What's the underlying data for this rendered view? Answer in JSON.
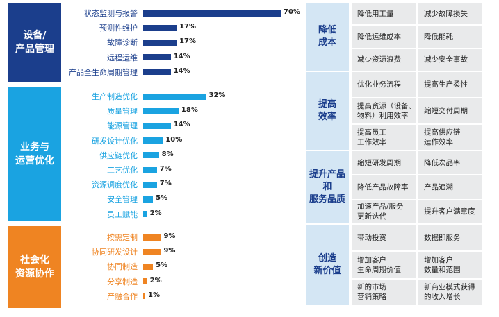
{
  "colors": {
    "equipment": "#1b3e8c",
    "business": "#1aa3e1",
    "social": "#ef8422",
    "right_head_bg": "#d4e6f4",
    "right_head_text": "#1b3e8c",
    "cell_bg": "#e9eaeb"
  },
  "chart_data": {
    "type": "bar",
    "orientation": "horizontal",
    "xlim": [
      0,
      70
    ],
    "groups": [
      {
        "name": "设备/\n产品管理",
        "color": "#1b3e8c",
        "categories": [
          "状态监测与报警",
          "预测性维护",
          "故障诊断",
          "远程运维",
          "产品全生命周期管理"
        ],
        "values": [
          70,
          17,
          17,
          14,
          14
        ],
        "labels": [
          "70%",
          "17%",
          "17%",
          "14%",
          "14%"
        ]
      },
      {
        "name": "业务与\n运营优化",
        "color": "#1aa3e1",
        "categories": [
          "生产制造优化",
          "质量管理",
          "能源管理",
          "研发设计优化",
          "供应链优化",
          "工艺优化",
          "资源调度优化",
          "安全管理",
          "员工赋能"
        ],
        "values": [
          32,
          18,
          14,
          10,
          8,
          7,
          7,
          5,
          2
        ],
        "labels": [
          "32%",
          "18%",
          "14%",
          "10%",
          "8%",
          "7%",
          "7%",
          "5%",
          "2%"
        ]
      },
      {
        "name": "社会化\n资源协作",
        "color": "#ef8422",
        "categories": [
          "按需定制",
          "协同研发设计",
          "协同制造",
          "分享制造",
          "产融合作"
        ],
        "values": [
          9,
          9,
          5,
          2,
          1
        ],
        "labels": [
          "9%",
          "9%",
          "5%",
          "2%",
          "1%"
        ]
      }
    ]
  },
  "right_panel": [
    {
      "title": "降低\n成本",
      "cells": [
        [
          "降低用工量",
          "减少故障损失"
        ],
        [
          "降低运维成本",
          "降低能耗"
        ],
        [
          "减少资源浪费",
          "减少安全事故"
        ]
      ]
    },
    {
      "title": "提高\n效率",
      "cells": [
        [
          "优化业务流程",
          "提高生产柔性"
        ],
        [
          "提高资源（设备、\n物料）利用效率",
          "缩短交付周期"
        ],
        [
          "提高员工\n工作效率",
          "提高供应链\n运作效率"
        ]
      ]
    },
    {
      "title": "提升产品\n和\n服务品质",
      "cells": [
        [
          "缩短研发周期",
          "降低次品率"
        ],
        [
          "降低产品故障率",
          "产品追溯"
        ],
        [
          "加速产品/服务\n更新迭代",
          "提升客户满意度"
        ]
      ]
    },
    {
      "title": "创造\n新价值",
      "cells": [
        [
          "带动投资",
          "数据即服务"
        ],
        [
          "增加客户\n生命周期价值",
          "增加客户\n数量和范围"
        ],
        [
          "新的市场\n营销策略",
          "新商业模式获得\n的收入增长"
        ]
      ]
    }
  ]
}
